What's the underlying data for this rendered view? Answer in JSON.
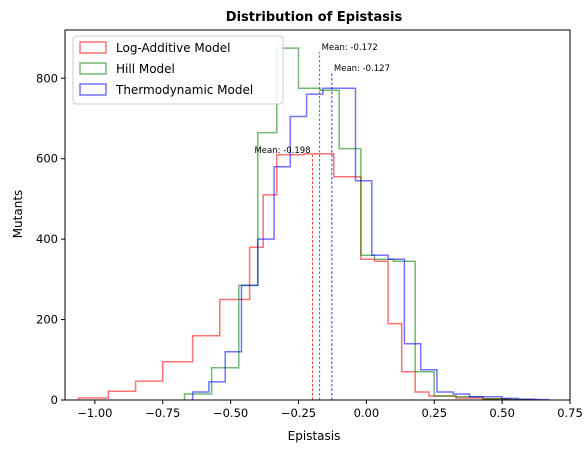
{
  "chart_data": {
    "type": "histogram",
    "title": "Distribution of Epistasis",
    "xlabel": "Epistasis",
    "ylabel": "Mutants",
    "xlim": [
      -1.11,
      0.75
    ],
    "ylim": [
      0,
      920
    ],
    "xticks": [
      -1.0,
      -0.75,
      -0.5,
      -0.25,
      0.0,
      0.25,
      0.5,
      0.75
    ],
    "xtick_labels": [
      "−1.00",
      "−0.75",
      "−0.50",
      "−0.25",
      "0.00",
      "0.25",
      "0.50",
      "0.75"
    ],
    "yticks": [
      0,
      200,
      400,
      600,
      800
    ],
    "ytick_labels": [
      "0",
      "200",
      "400",
      "600",
      "800"
    ],
    "grid": false,
    "legend_position": "upper-left",
    "series": [
      {
        "name": "Log-Additive Model",
        "color": "#ff0000",
        "edges": [
          -1.06,
          -0.95,
          -0.85,
          -0.75,
          -0.64,
          -0.54,
          -0.43,
          -0.38,
          -0.33,
          -0.23,
          -0.12,
          -0.02,
          0.03,
          0.08,
          0.13,
          0.18,
          0.23,
          0.33,
          0.43,
          0.53,
          0.63
        ],
        "counts": [
          5,
          22,
          47,
          95,
          160,
          250,
          380,
          510,
          610,
          612,
          555,
          350,
          345,
          190,
          70,
          20,
          10,
          5,
          3,
          1
        ],
        "mean_value": -0.198,
        "mean_label": "Mean: -0.198"
      },
      {
        "name": "Hill Model",
        "color": "#008000",
        "edges": [
          -0.67,
          -0.57,
          -0.47,
          -0.4,
          -0.33,
          -0.25,
          -0.17,
          -0.1,
          -0.02,
          0.03,
          0.1,
          0.18,
          0.25,
          0.33,
          0.43,
          0.52,
          0.6
        ],
        "counts": [
          15,
          80,
          285,
          665,
          875,
          775,
          770,
          625,
          360,
          350,
          345,
          70,
          10,
          8,
          3,
          1
        ],
        "mean_value": -0.172,
        "mean_label": "Mean: -0.172"
      },
      {
        "name": "Thermodynamic Model",
        "color": "#0000ff",
        "edges": [
          -0.64,
          -0.58,
          -0.52,
          -0.46,
          -0.4,
          -0.34,
          -0.28,
          -0.22,
          -0.16,
          -0.1,
          -0.04,
          0.02,
          0.08,
          0.14,
          0.2,
          0.26,
          0.32,
          0.38,
          0.44,
          0.5,
          0.56,
          0.62,
          0.67
        ],
        "counts": [
          20,
          45,
          120,
          285,
          400,
          580,
          705,
          760,
          775,
          775,
          545,
          360,
          350,
          140,
          75,
          20,
          15,
          8,
          8,
          4,
          2,
          1
        ],
        "mean_value": -0.127,
        "mean_label": "Mean: -0.127"
      }
    ]
  }
}
